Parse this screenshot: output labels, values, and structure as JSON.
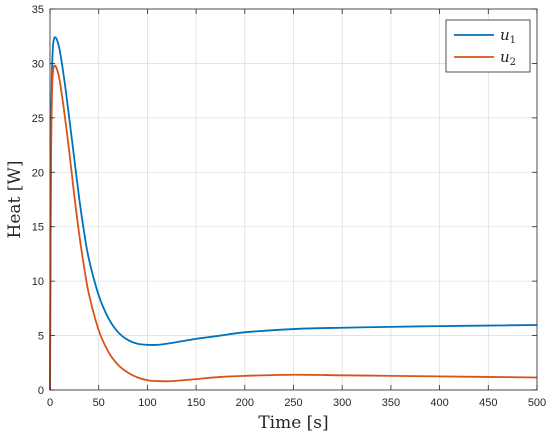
{
  "chart_data": {
    "type": "line",
    "title": "",
    "xlabel": "Time [s]",
    "ylabel": "Heat [W]",
    "xlim": [
      0,
      500
    ],
    "ylim": [
      0,
      35
    ],
    "xticks": [
      0,
      50,
      100,
      150,
      200,
      250,
      300,
      350,
      400,
      450,
      500
    ],
    "yticks": [
      0,
      5,
      10,
      15,
      20,
      25,
      30,
      35
    ],
    "grid": true,
    "legend_position": "top-right",
    "series": [
      {
        "name": "u1",
        "name_base": "u",
        "name_sub": "1",
        "color": "#0072BD",
        "x": [
          0,
          1,
          2,
          3,
          4,
          5,
          7,
          10,
          15,
          20,
          25,
          30,
          35,
          40,
          50,
          60,
          70,
          80,
          90,
          100,
          110,
          120,
          130,
          150,
          175,
          200,
          250,
          300,
          350,
          400,
          450,
          500
        ],
        "y": [
          0,
          22,
          29,
          31.5,
          32.2,
          32.4,
          32.2,
          31.2,
          28.3,
          24.8,
          21.2,
          17.6,
          14.5,
          12.0,
          8.7,
          6.6,
          5.3,
          4.6,
          4.25,
          4.15,
          4.15,
          4.25,
          4.4,
          4.7,
          5.0,
          5.3,
          5.6,
          5.72,
          5.8,
          5.87,
          5.92,
          5.97
        ]
      },
      {
        "name": "u2",
        "name_base": "u",
        "name_sub": "2",
        "color": "#D95319",
        "x": [
          0,
          1,
          2,
          3,
          4,
          5,
          7,
          10,
          15,
          20,
          25,
          30,
          35,
          40,
          50,
          60,
          70,
          80,
          90,
          100,
          110,
          120,
          130,
          150,
          175,
          200,
          250,
          300,
          350,
          400,
          450,
          500
        ],
        "y": [
          0,
          20,
          27,
          29.2,
          29.7,
          29.8,
          29.5,
          28.4,
          25.3,
          21.7,
          17.8,
          14.3,
          11.3,
          8.8,
          5.5,
          3.5,
          2.3,
          1.6,
          1.15,
          0.9,
          0.82,
          0.8,
          0.85,
          1.0,
          1.2,
          1.3,
          1.4,
          1.35,
          1.3,
          1.25,
          1.2,
          1.15
        ]
      }
    ]
  }
}
